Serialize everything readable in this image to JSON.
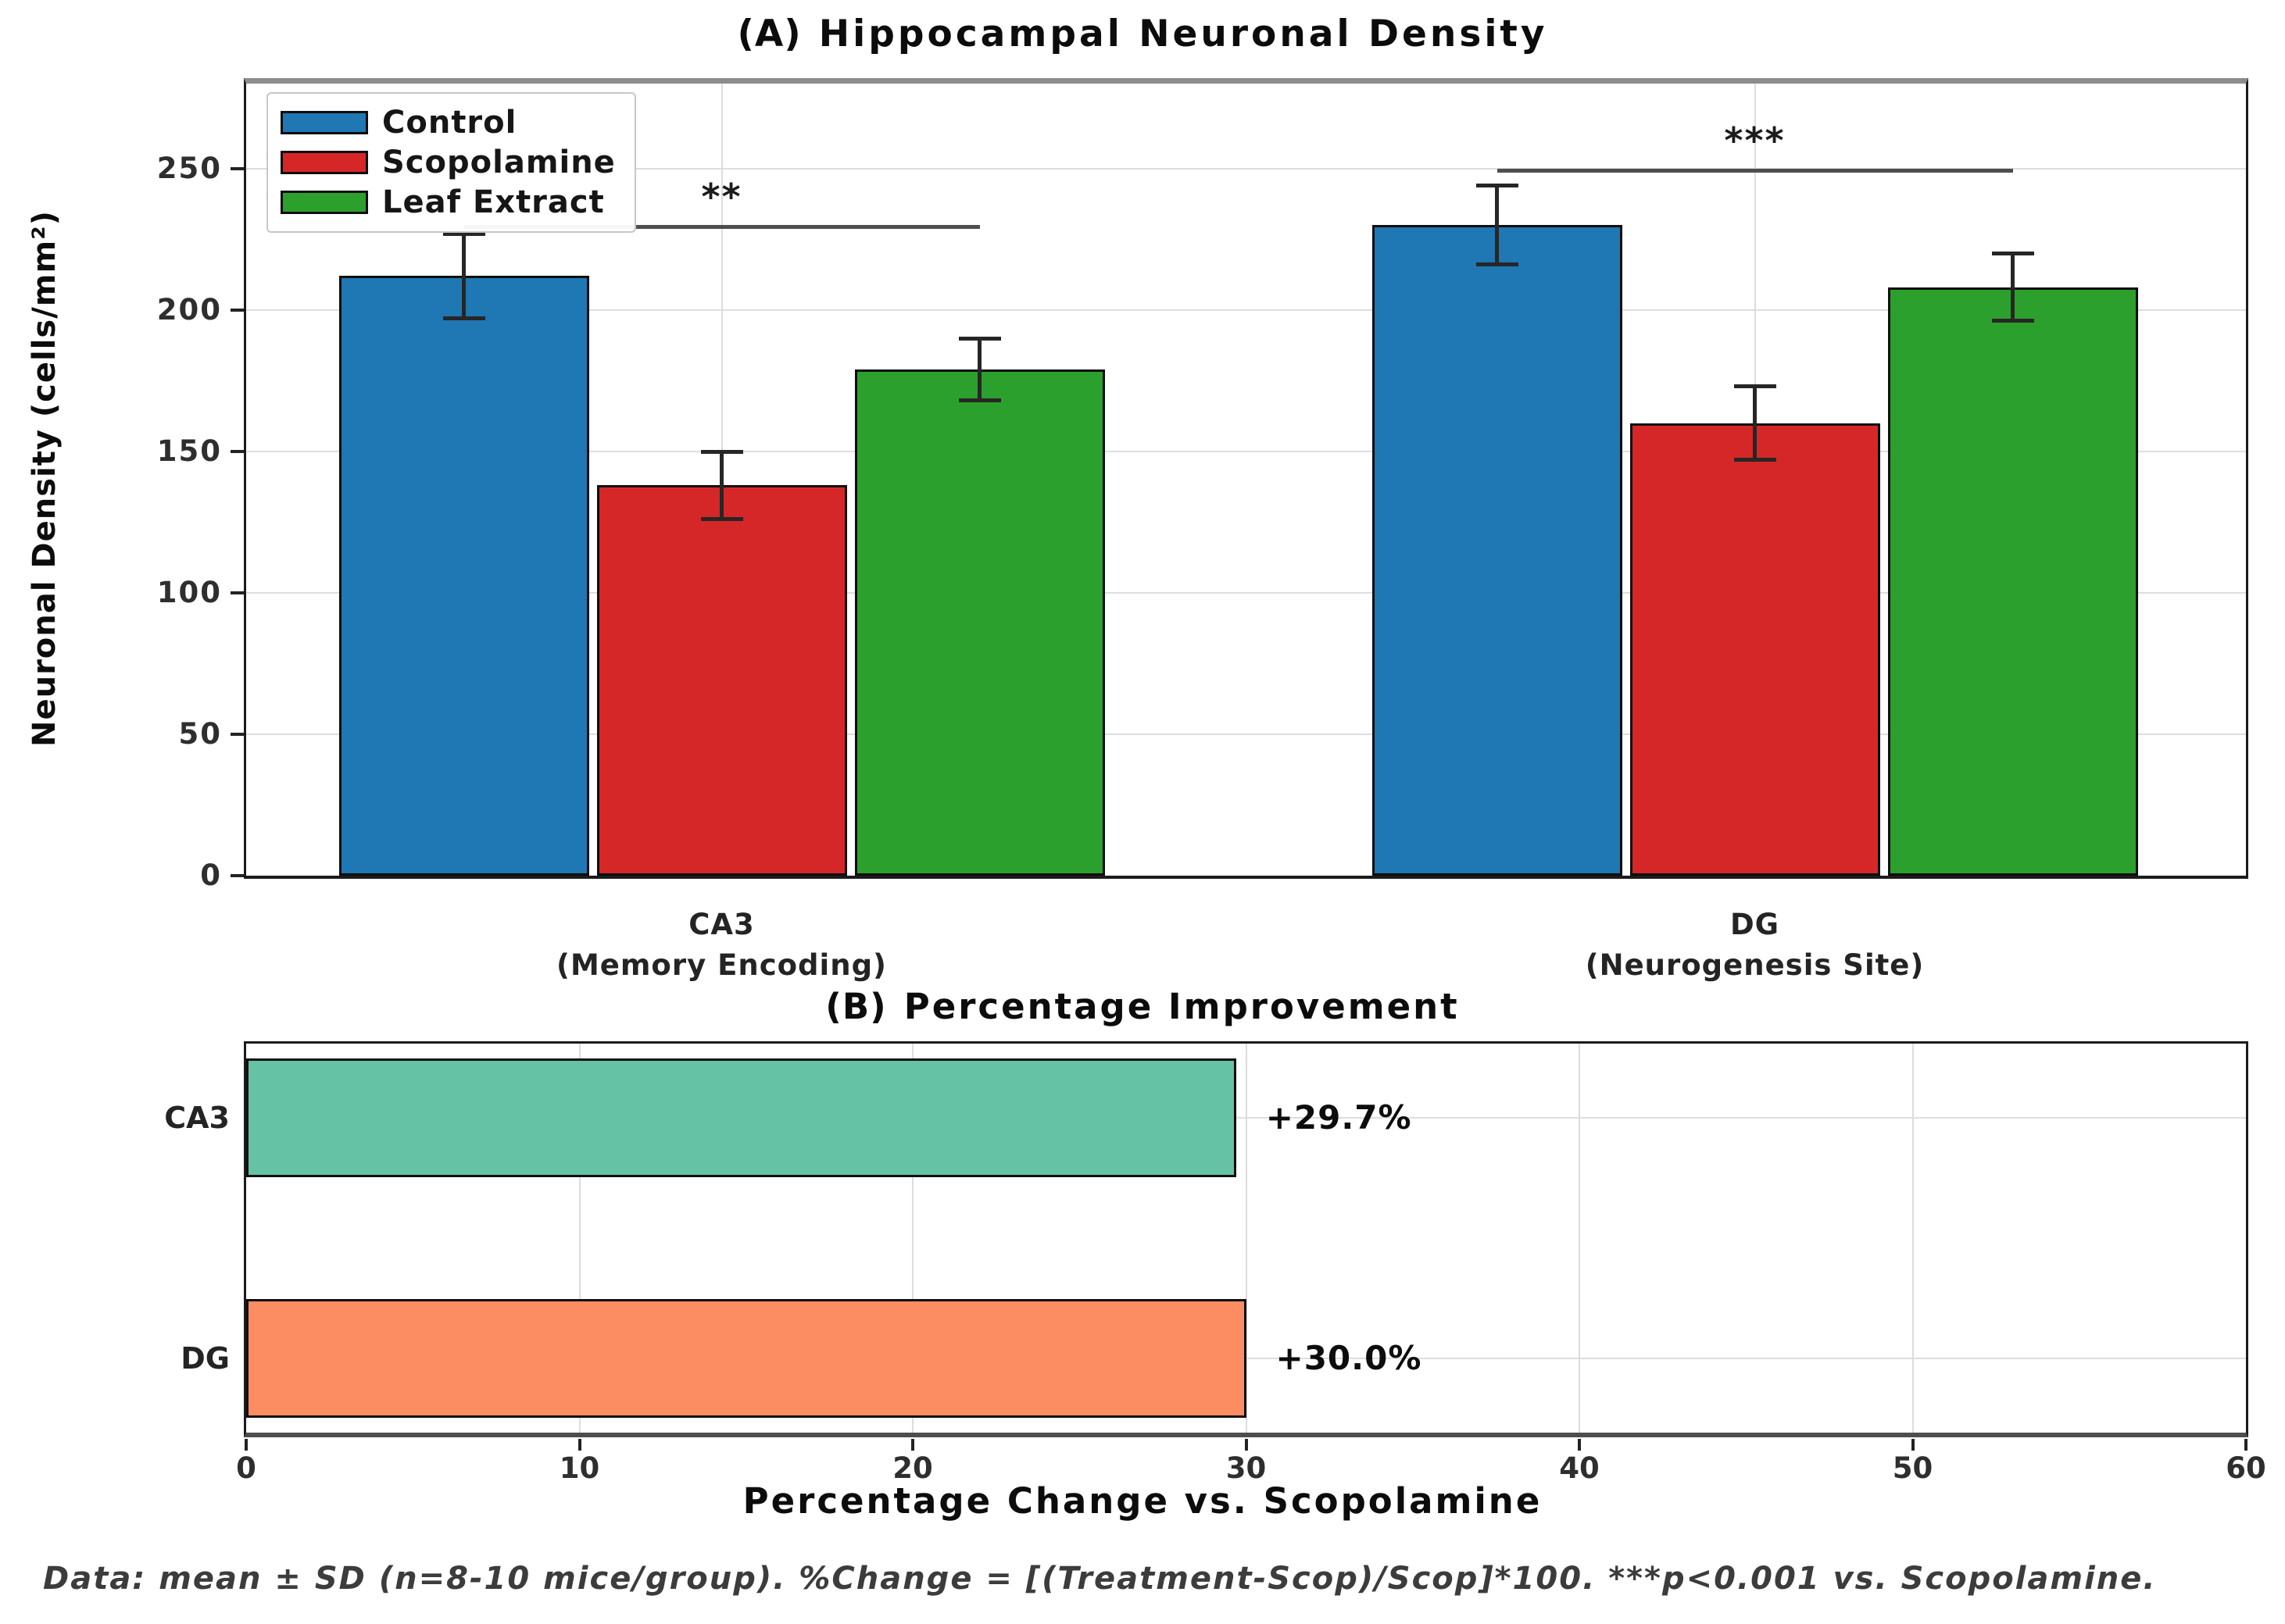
{
  "footnote": "Data: mean ± SD (n=8-10 mice/group). %Change = [(Treatment-Scop)/Scop]*100. ***p<0.001 vs. Scopolamine.",
  "chart_data": [
    {
      "type": "bar",
      "panel": "A",
      "title_prefix": "(A)",
      "title": "Hippocampal Neuronal Density",
      "ylabel": "Neuronal Density (cells/mm²)",
      "ylim": [
        0,
        280
      ],
      "yticks": [
        0,
        50,
        100,
        150,
        200,
        250
      ],
      "grid": true,
      "legend_position": "upper left",
      "categories": [
        {
          "id": "CA3",
          "label_line1": "CA3",
          "label_line2": "(Memory Encoding)"
        },
        {
          "id": "DG",
          "label_line1": "DG",
          "label_line2": "(Neurogenesis Site)"
        }
      ],
      "series": [
        {
          "name": "Control",
          "color": "#1f77b4",
          "values": [
            212,
            230
          ],
          "errors": [
            15,
            14
          ]
        },
        {
          "name": "Scopolamine",
          "color": "#d62728",
          "values": [
            138,
            160
          ],
          "errors": [
            12,
            13
          ]
        },
        {
          "name": "Leaf Extract",
          "color": "#2ca02c",
          "values": [
            179,
            208
          ],
          "errors": [
            11,
            12
          ]
        }
      ],
      "significance": [
        {
          "category": "CA3",
          "label": "**",
          "bar_y": 230,
          "span_series": [
            "Control",
            "Leaf Extract"
          ]
        },
        {
          "category": "DG",
          "label": "***",
          "bar_y": 250,
          "span_series": [
            "Control",
            "Leaf Extract"
          ]
        }
      ]
    },
    {
      "type": "bar",
      "orientation": "horizontal",
      "panel": "B",
      "title_prefix": "(B)",
      "title": "Percentage Improvement",
      "xlabel": "Percentage Change vs. Scopolamine",
      "xlim": [
        0,
        60
      ],
      "xticks": [
        0,
        10,
        20,
        30,
        40,
        50,
        60
      ],
      "grid": true,
      "categories": [
        "CA3",
        "DG"
      ],
      "values": [
        29.7,
        30.0
      ],
      "value_labels": [
        "+29.7%",
        "+30.0%"
      ],
      "colors": [
        "#66c2a5",
        "#fc8d62"
      ]
    }
  ]
}
